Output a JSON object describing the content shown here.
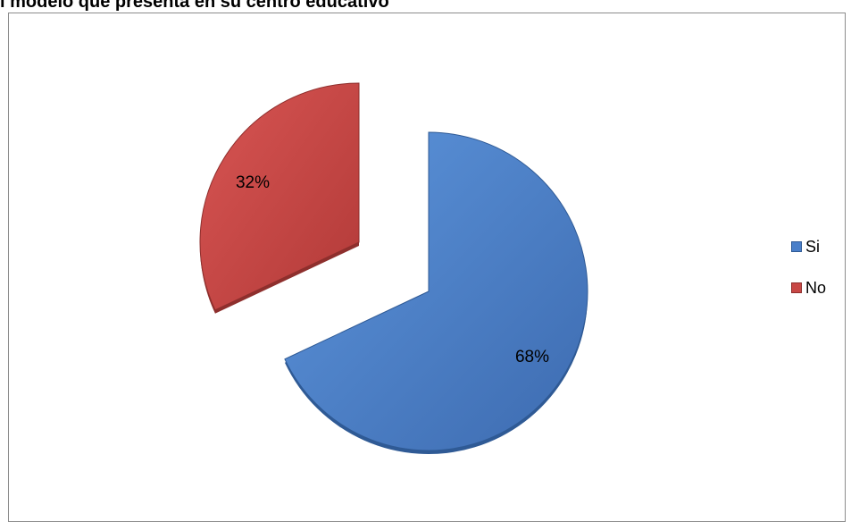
{
  "chart_data": {
    "type": "pie",
    "title": "l modelo que presenta en su centro educativo",
    "categories": [
      "Si",
      "No"
    ],
    "values": [
      68,
      32
    ],
    "data_labels": [
      "68%",
      "32%"
    ],
    "colors": [
      "#4a7fc9",
      "#c84745"
    ],
    "legend_position": "right",
    "exploded": true,
    "style": "3d"
  }
}
